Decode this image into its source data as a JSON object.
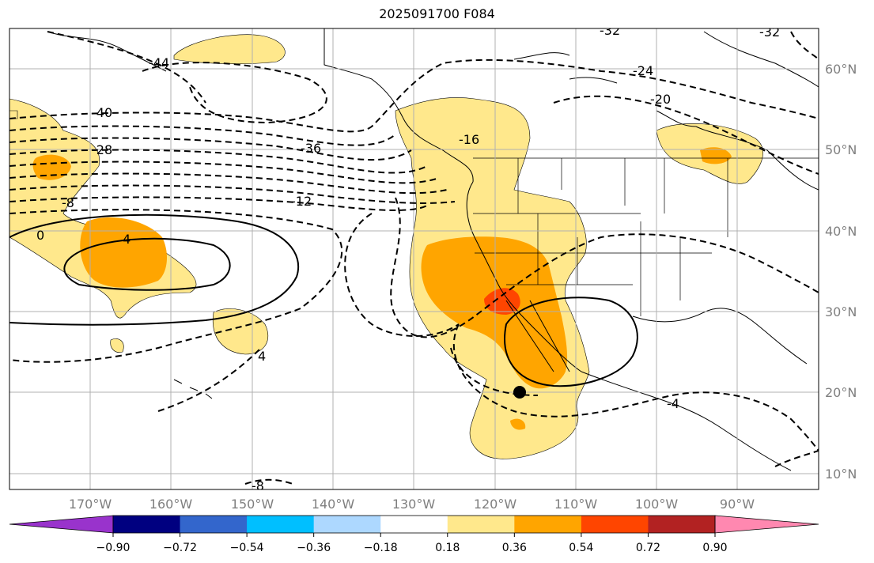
{
  "title": "2025091700 F084",
  "lat_labels": [
    "60°N",
    "50°N",
    "40°N",
    "30°N",
    "20°N",
    "10°N"
  ],
  "lon_labels": [
    "170°W",
    "160°W",
    "150°W",
    "140°W",
    "130°W",
    "120°W",
    "110°W",
    "100°W",
    "90°W"
  ],
  "contour_labels": [
    "-44",
    "-40",
    "-28",
    "-8",
    "0",
    "4",
    "-36",
    "-12",
    "-16",
    "-24",
    "-20",
    "-32",
    "-32",
    "4",
    "-4",
    "-8"
  ],
  "colorbar": {
    "colors": [
      "#9933cc",
      "#000080",
      "#3366cc",
      "#00bfff",
      "#add8ff",
      "#ffffff",
      "#ffe88c",
      "#ffa500",
      "#ff4500",
      "#b22222",
      "#ff88b0"
    ],
    "labels": [
      "−0.90",
      "−0.72",
      "−0.54",
      "−0.36",
      "−0.18",
      "0.18",
      "0.36",
      "0.54",
      "0.72",
      "0.90"
    ]
  },
  "marker": "storm-center-dot"
}
